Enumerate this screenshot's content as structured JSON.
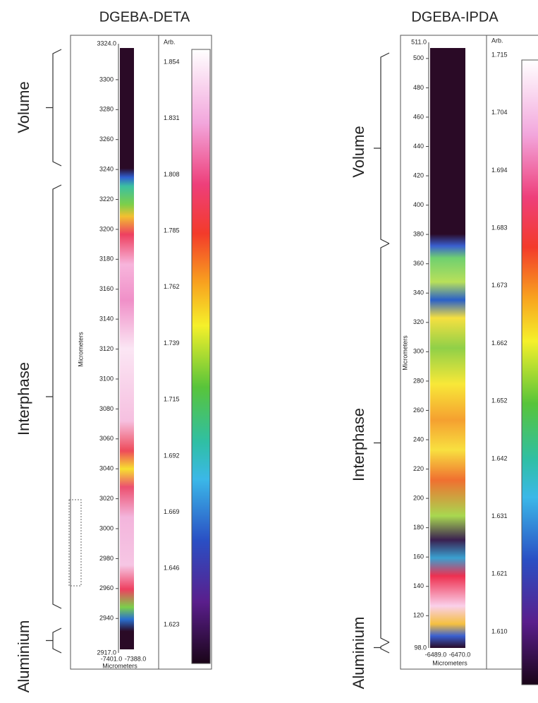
{
  "panels": [
    {
      "title": "DGEBA-DETA",
      "regions": [
        "Volume",
        "Interphase",
        "Aluminium"
      ],
      "y_axis": {
        "label": "Micrometers",
        "top": "3324.0",
        "bottom": "2917.0",
        "ticks": [
          "3300",
          "3280",
          "3260",
          "3240",
          "3220",
          "3200",
          "3180",
          "3160",
          "3140",
          "3120",
          "3100",
          "3080",
          "3060",
          "3040",
          "3020",
          "3000",
          "2980",
          "2960",
          "2940"
        ]
      },
      "x_axis": {
        "label": "Micrometers",
        "ticks": [
          "-7401.0",
          "-7388.0"
        ]
      },
      "colorbar": {
        "label": "Arb.",
        "ticks": [
          "1.854",
          "1.831",
          "1.808",
          "1.785",
          "1.762",
          "1.739",
          "1.715",
          "1.692",
          "1.669",
          "1.646",
          "1.623"
        ]
      }
    },
    {
      "title": "DGEBA-IPDA",
      "regions": [
        "Volume",
        "Interphase",
        "Aluminium"
      ],
      "y_axis": {
        "label": "Micrometers",
        "top": "511.0",
        "bottom": "98.0",
        "ticks": [
          "500",
          "480",
          "460",
          "440",
          "420",
          "400",
          "380",
          "360",
          "340",
          "320",
          "300",
          "280",
          "260",
          "240",
          "220",
          "200",
          "180",
          "160",
          "140",
          "120"
        ]
      },
      "x_axis": {
        "label": "Micrometers",
        "ticks": [
          "-6489.0",
          "-6470.0"
        ]
      },
      "colorbar": {
        "label": "Arb.",
        "ticks": [
          "1.715",
          "1.704",
          "1.694",
          "1.683",
          "1.673",
          "1.662",
          "1.652",
          "1.642",
          "1.631",
          "1.621",
          "1.610"
        ]
      }
    }
  ]
}
